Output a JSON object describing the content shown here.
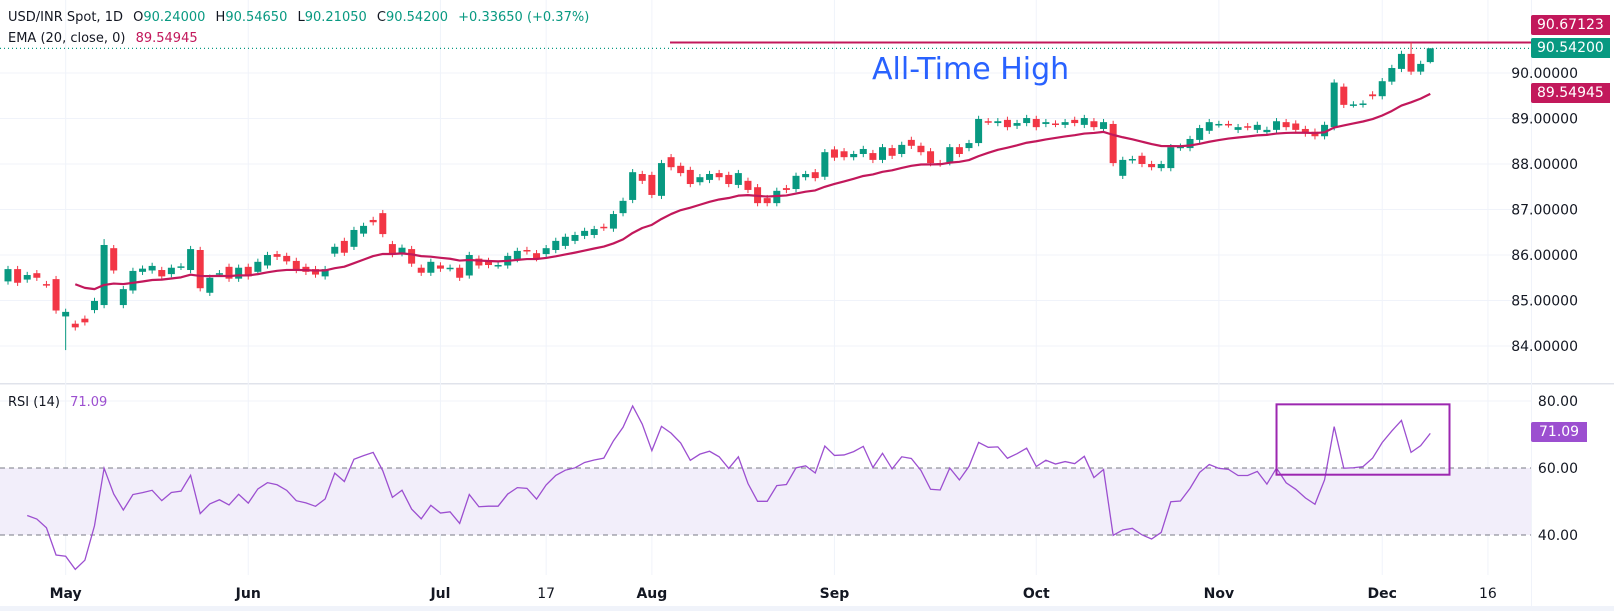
{
  "header": {
    "symbol": "USD/INR Spot, 1D",
    "open_label": "O",
    "open": "90.24000",
    "high_label": "H",
    "high": "90.54650",
    "low_label": "L",
    "low": "90.21050",
    "close_label": "C",
    "close": "90.54200",
    "change": "+0.33650 (+0.37%)",
    "ema_label": "EMA (20, close, 0)",
    "ema_value": "89.54945"
  },
  "annotation": {
    "text": "All-Time High"
  },
  "price_tags": {
    "ath": "90.67123",
    "last": "90.54200",
    "ema": "89.54945"
  },
  "rsi_panel": {
    "label": "RSI (14)",
    "value": "71.09"
  },
  "colors": {
    "up": "#089981",
    "down": "#f23645",
    "ema": "#c2185b",
    "rsi": "#9c4fd0",
    "ath_line": "#c2185b",
    "annotation": "#2962ff",
    "box": "#9c27b0"
  },
  "chart_data": [
    {
      "type": "candlestick",
      "title": "USD/INR Spot, 1D",
      "y_ticks": [
        "84.00000",
        "85.00000",
        "86.00000",
        "87.00000",
        "88.00000",
        "89.00000",
        "90.00000"
      ],
      "ylim": [
        83.45,
        91.6
      ],
      "x_ticks": [
        {
          "label": "May",
          "bold": true,
          "index": 6
        },
        {
          "label": "Jun",
          "bold": true,
          "index": 25
        },
        {
          "label": "Jul",
          "bold": true,
          "index": 45
        },
        {
          "label": "17",
          "bold": false,
          "index": 56
        },
        {
          "label": "Aug",
          "bold": true,
          "index": 67
        },
        {
          "label": "Sep",
          "bold": true,
          "index": 86
        },
        {
          "label": "Oct",
          "bold": true,
          "index": 107
        },
        {
          "label": "Nov",
          "bold": true,
          "index": 126
        },
        {
          "label": "Dec",
          "bold": true,
          "index": 143
        },
        {
          "label": "16",
          "bold": false,
          "index": 154
        }
      ],
      "all_time_high": 90.67123,
      "last_close": 90.542,
      "ema_period": 20,
      "candles_oc": [
        [
          85.42,
          85.69
        ],
        [
          85.69,
          85.39
        ],
        [
          85.46,
          85.56
        ],
        [
          85.6,
          85.5
        ],
        [
          85.36,
          85.35
        ],
        [
          85.47,
          84.78
        ],
        [
          84.65,
          84.75
        ],
        [
          84.49,
          84.41
        ],
        [
          84.6,
          84.52
        ],
        [
          84.79,
          84.99
        ],
        [
          84.9,
          86.22
        ],
        [
          86.15,
          85.66
        ],
        [
          84.9,
          85.25
        ],
        [
          85.22,
          85.65
        ],
        [
          85.63,
          85.7
        ],
        [
          85.66,
          85.76
        ],
        [
          85.67,
          85.53
        ],
        [
          85.58,
          85.72
        ],
        [
          85.74,
          85.75
        ],
        [
          85.67,
          86.13
        ],
        [
          86.11,
          85.27
        ],
        [
          85.17,
          85.5
        ],
        [
          85.59,
          85.6
        ],
        [
          85.74,
          85.48
        ],
        [
          85.48,
          85.72
        ],
        [
          85.74,
          85.53
        ],
        [
          85.63,
          85.85
        ],
        [
          85.77,
          86.0
        ],
        [
          86.02,
          85.96
        ],
        [
          85.98,
          85.86
        ],
        [
          85.87,
          85.67
        ],
        [
          85.74,
          85.63
        ],
        [
          85.69,
          85.57
        ],
        [
          85.53,
          85.69
        ],
        [
          86.03,
          86.18
        ],
        [
          86.31,
          86.05
        ],
        [
          86.18,
          86.55
        ],
        [
          86.47,
          86.64
        ],
        [
          86.77,
          86.72
        ],
        [
          86.92,
          86.46
        ],
        [
          86.24,
          86.02
        ],
        [
          86.04,
          86.16
        ],
        [
          86.13,
          85.81
        ],
        [
          85.72,
          85.61
        ],
        [
          85.61,
          85.85
        ],
        [
          85.77,
          85.7
        ],
        [
          85.71,
          85.72
        ],
        [
          85.72,
          85.5
        ],
        [
          85.55,
          86.0
        ],
        [
          85.92,
          85.77
        ],
        [
          85.87,
          85.78
        ],
        [
          85.77,
          85.78
        ],
        [
          85.77,
          85.98
        ],
        [
          85.91,
          86.09
        ],
        [
          86.11,
          86.08
        ],
        [
          86.04,
          85.93
        ],
        [
          86.02,
          86.15
        ],
        [
          86.11,
          86.31
        ],
        [
          86.2,
          86.4
        ],
        [
          86.31,
          86.44
        ],
        [
          86.42,
          86.53
        ],
        [
          86.44,
          86.57
        ],
        [
          86.62,
          86.6
        ],
        [
          86.58,
          86.9
        ],
        [
          86.92,
          87.19
        ],
        [
          87.21,
          87.82
        ],
        [
          87.78,
          87.63
        ],
        [
          87.76,
          87.32
        ],
        [
          87.3,
          88.02
        ],
        [
          88.15,
          87.93
        ],
        [
          87.96,
          87.8
        ],
        [
          87.87,
          87.56
        ],
        [
          87.6,
          87.71
        ],
        [
          87.65,
          87.78
        ],
        [
          87.8,
          87.71
        ],
        [
          87.76,
          87.56
        ],
        [
          87.54,
          87.8
        ],
        [
          87.63,
          87.43
        ],
        [
          87.49,
          87.14
        ],
        [
          87.25,
          87.14
        ],
        [
          87.14,
          87.41
        ],
        [
          87.47,
          87.43
        ],
        [
          87.45,
          87.74
        ],
        [
          87.71,
          87.78
        ],
        [
          87.82,
          87.69
        ],
        [
          87.72,
          88.26
        ],
        [
          88.32,
          88.14
        ],
        [
          88.28,
          88.15
        ],
        [
          88.15,
          88.22
        ],
        [
          88.22,
          88.33
        ],
        [
          88.24,
          88.09
        ],
        [
          88.09,
          88.37
        ],
        [
          88.35,
          88.18
        ],
        [
          88.22,
          88.42
        ],
        [
          88.53,
          88.4
        ],
        [
          88.4,
          88.26
        ],
        [
          88.28,
          88.02
        ],
        [
          88.02,
          88.01
        ],
        [
          88.04,
          88.37
        ],
        [
          88.37,
          88.22
        ],
        [
          88.35,
          88.46
        ],
        [
          88.46,
          88.99
        ],
        [
          88.94,
          88.93
        ],
        [
          88.9,
          88.94
        ],
        [
          88.97,
          88.81
        ],
        [
          88.84,
          88.9
        ],
        [
          88.9,
          89.01
        ],
        [
          88.99,
          88.81
        ],
        [
          88.88,
          88.92
        ],
        [
          88.89,
          88.88
        ],
        [
          88.86,
          88.92
        ],
        [
          88.97,
          88.9
        ],
        [
          88.86,
          89.01
        ],
        [
          88.94,
          88.81
        ],
        [
          88.77,
          88.92
        ],
        [
          88.88,
          88.02
        ],
        [
          87.74,
          88.09
        ],
        [
          88.08,
          88.11
        ],
        [
          88.18,
          88.0
        ],
        [
          88.0,
          87.93
        ],
        [
          87.91,
          88.0
        ],
        [
          87.91,
          88.37
        ],
        [
          88.36,
          88.38
        ],
        [
          88.35,
          88.55
        ],
        [
          88.53,
          88.79
        ],
        [
          88.73,
          88.92
        ],
        [
          88.87,
          88.88
        ],
        [
          88.88,
          88.87
        ],
        [
          88.75,
          88.81
        ],
        [
          88.83,
          88.81
        ],
        [
          88.75,
          88.86
        ],
        [
          88.7,
          88.75
        ],
        [
          88.75,
          88.94
        ],
        [
          88.92,
          88.81
        ],
        [
          88.89,
          88.75
        ],
        [
          88.77,
          88.67
        ],
        [
          88.71,
          88.61
        ],
        [
          88.61,
          88.86
        ],
        [
          88.81,
          89.79
        ],
        [
          89.7,
          89.3
        ],
        [
          89.31,
          89.31
        ],
        [
          89.31,
          89.33
        ],
        [
          89.53,
          89.49
        ],
        [
          89.49,
          89.82
        ],
        [
          89.81,
          90.11
        ],
        [
          90.09,
          90.42
        ],
        [
          90.42,
          90.03
        ],
        [
          90.03,
          90.2
        ],
        [
          90.24,
          90.542
        ]
      ],
      "wick_extremes": {
        "6": {
          "low": 83.91
        },
        "10": {
          "high": 86.35
        },
        "146": {
          "high": 90.67123
        },
        "148": {
          "high": 90.5465,
          "low": 90.2105
        }
      }
    },
    {
      "type": "line",
      "title": "RSI (14)",
      "y_ticks": [
        "80.00",
        "60.00",
        "40.00"
      ],
      "ylim": [
        32,
        85
      ],
      "band": [
        40,
        60
      ],
      "last_value": 71.09,
      "highlight_box_range": {
        "from_index": 132,
        "to_index": 150,
        "rsi_low": 58,
        "rsi_high": 79
      }
    }
  ]
}
